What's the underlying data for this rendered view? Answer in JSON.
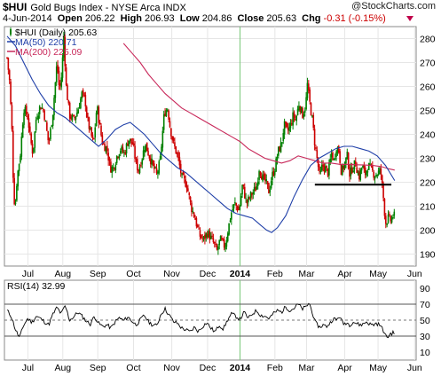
{
  "header": {
    "symbol": "$HUI",
    "name": "Gold Bugs Index - NYSE Arca INDX",
    "credit": "@StockCharts.com",
    "date": "4-Jun-2014",
    "open_label": "Open",
    "open": "206.22",
    "high_label": "High",
    "high": "206.93",
    "low_label": "Low",
    "low": "204.86",
    "close_label": "Close",
    "close": "205.63",
    "chg_label": "Chg",
    "chg": "-0.31 (-0.15%)"
  },
  "colors": {
    "up": "#008000",
    "down": "#cc0000",
    "ma50": "#1f3fa8",
    "ma200": "#c8285a",
    "rsi": "#000000",
    "vline": "#78c878"
  },
  "chart_data": [
    {
      "type": "candlestick",
      "legend": [
        {
          "name": "$HUI (Daily)",
          "value": "205.63",
          "swatch": "candle"
        },
        {
          "name": "MA(50)",
          "value": "220.71",
          "swatch": "ma50"
        },
        {
          "name": "MA(200)",
          "value": "225.09",
          "swatch": "ma200"
        }
      ],
      "ylim": [
        185,
        285
      ],
      "yticks": [
        190,
        200,
        210,
        220,
        230,
        240,
        250,
        260,
        270,
        280
      ],
      "x_labels": [
        "Jul",
        "Aug",
        "Sep",
        "Oct",
        "Nov",
        "Dec",
        "2014",
        "Feb",
        "Mar",
        "Apr",
        "May",
        "Jun"
      ],
      "x_label_days": [
        25,
        67,
        109,
        152,
        198,
        241,
        280,
        322,
        360,
        406,
        446,
        490
      ],
      "year_marker_day": 280,
      "price_keypoints": [
        [
          0,
          272
        ],
        [
          3,
          262
        ],
        [
          6,
          240
        ],
        [
          8,
          213
        ],
        [
          10,
          211
        ],
        [
          12,
          222
        ],
        [
          16,
          232
        ],
        [
          20,
          251
        ],
        [
          25,
          247
        ],
        [
          28,
          238
        ],
        [
          31,
          232
        ],
        [
          35,
          247
        ],
        [
          40,
          252
        ],
        [
          44,
          250
        ],
        [
          50,
          236
        ],
        [
          55,
          249
        ],
        [
          60,
          270
        ],
        [
          63,
          258
        ],
        [
          66,
          266
        ],
        [
          68,
          282
        ],
        [
          71,
          260
        ],
        [
          75,
          248
        ],
        [
          80,
          246
        ],
        [
          85,
          250
        ],
        [
          90,
          257
        ],
        [
          94,
          254
        ],
        [
          96,
          247
        ],
        [
          100,
          241
        ],
        [
          104,
          236
        ],
        [
          108,
          252
        ],
        [
          112,
          242
        ],
        [
          115,
          236
        ],
        [
          120,
          234
        ],
        [
          124,
          226
        ],
        [
          128,
          226
        ],
        [
          132,
          231
        ],
        [
          136,
          234
        ],
        [
          141,
          232
        ],
        [
          146,
          238
        ],
        [
          151,
          236
        ],
        [
          155,
          228
        ],
        [
          158,
          225
        ],
        [
          162,
          230
        ],
        [
          166,
          236
        ],
        [
          170,
          232
        ],
        [
          175,
          227
        ],
        [
          180,
          223
        ],
        [
          184,
          229
        ],
        [
          189,
          249
        ],
        [
          193,
          251
        ],
        [
          196,
          243
        ],
        [
          200,
          236
        ],
        [
          205,
          231
        ],
        [
          210,
          222
        ],
        [
          216,
          219
        ],
        [
          221,
          210
        ],
        [
          226,
          205
        ],
        [
          231,
          198
        ],
        [
          236,
          196
        ],
        [
          241,
          199
        ],
        [
          246,
          196
        ],
        [
          249,
          194
        ],
        [
          252,
          191
        ],
        [
          256,
          196
        ],
        [
          262,
          193
        ],
        [
          266,
          201
        ],
        [
          270,
          208
        ],
        [
          274,
          211
        ],
        [
          279,
          208
        ],
        [
          283,
          219
        ],
        [
          288,
          211
        ],
        [
          292,
          214
        ],
        [
          296,
          216
        ],
        [
          300,
          218
        ],
        [
          303,
          226
        ],
        [
          307,
          222
        ],
        [
          311,
          220
        ],
        [
          315,
          216
        ],
        [
          318,
          222
        ],
        [
          322,
          226
        ],
        [
          326,
          233
        ],
        [
          330,
          236
        ],
        [
          333,
          244
        ],
        [
          337,
          241
        ],
        [
          341,
          244
        ],
        [
          344,
          248
        ],
        [
          347,
          246
        ],
        [
          351,
          253
        ],
        [
          355,
          248
        ],
        [
          359,
          252
        ],
        [
          361,
          261
        ],
        [
          363,
          255
        ],
        [
          367,
          246
        ],
        [
          370,
          236
        ],
        [
          373,
          229
        ],
        [
          376,
          222
        ],
        [
          379,
          227
        ],
        [
          382,
          226
        ],
        [
          386,
          224
        ],
        [
          390,
          232
        ],
        [
          393,
          229
        ],
        [
          396,
          235
        ],
        [
          399,
          233
        ],
        [
          402,
          224
        ],
        [
          405,
          227
        ],
        [
          409,
          231
        ],
        [
          412,
          223
        ],
        [
          415,
          226
        ],
        [
          419,
          228
        ],
        [
          423,
          222
        ],
        [
          427,
          227
        ],
        [
          430,
          223
        ],
        [
          434,
          227
        ],
        [
          438,
          225
        ],
        [
          442,
          223
        ],
        [
          446,
          224
        ],
        [
          449,
          225
        ],
        [
          452,
          215
        ],
        [
          455,
          203
        ],
        [
          458,
          205
        ],
        [
          461,
          204
        ],
        [
          464,
          206
        ],
        [
          466,
          205.63
        ]
      ],
      "ma50_keypoints": [
        [
          0,
          281
        ],
        [
          10,
          277
        ],
        [
          20,
          270
        ],
        [
          30,
          263
        ],
        [
          40,
          257
        ],
        [
          50,
          252
        ],
        [
          60,
          249
        ],
        [
          70,
          247
        ],
        [
          80,
          244
        ],
        [
          90,
          241
        ],
        [
          100,
          238
        ],
        [
          110,
          235
        ],
        [
          120,
          238
        ],
        [
          130,
          242
        ],
        [
          140,
          244
        ],
        [
          148,
          245
        ],
        [
          155,
          243
        ],
        [
          165,
          240
        ],
        [
          175,
          236
        ],
        [
          185,
          232
        ],
        [
          195,
          229
        ],
        [
          205,
          226
        ],
        [
          215,
          224
        ],
        [
          225,
          221
        ],
        [
          235,
          218
        ],
        [
          245,
          215
        ],
        [
          255,
          212
        ],
        [
          265,
          209
        ],
        [
          275,
          207
        ],
        [
          285,
          206
        ],
        [
          295,
          205
        ],
        [
          305,
          202
        ],
        [
          312,
          200
        ],
        [
          318,
          199
        ],
        [
          325,
          201
        ],
        [
          335,
          206
        ],
        [
          345,
          214
        ],
        [
          355,
          221
        ],
        [
          365,
          227
        ],
        [
          375,
          230
        ],
        [
          385,
          232
        ],
        [
          395,
          234
        ],
        [
          405,
          235
        ],
        [
          415,
          235
        ],
        [
          425,
          234
        ],
        [
          435,
          233
        ],
        [
          445,
          231
        ],
        [
          455,
          227
        ],
        [
          466,
          220.71
        ]
      ],
      "ma200_keypoints": [
        [
          140,
          278
        ],
        [
          150,
          274
        ],
        [
          160,
          270
        ],
        [
          170,
          265
        ],
        [
          180,
          261
        ],
        [
          190,
          257
        ],
        [
          200,
          254
        ],
        [
          210,
          251
        ],
        [
          220,
          249
        ],
        [
          230,
          247
        ],
        [
          240,
          245
        ],
        [
          250,
          243
        ],
        [
          260,
          241
        ],
        [
          270,
          239
        ],
        [
          280,
          237
        ],
        [
          290,
          234
        ],
        [
          300,
          232
        ],
        [
          310,
          230
        ],
        [
          320,
          229
        ],
        [
          330,
          228
        ],
        [
          340,
          229
        ],
        [
          350,
          231
        ],
        [
          360,
          230
        ],
        [
          370,
          229
        ],
        [
          380,
          228
        ],
        [
          390,
          228
        ],
        [
          400,
          227.5
        ],
        [
          410,
          227.5
        ],
        [
          420,
          227.3
        ],
        [
          430,
          227.2
        ],
        [
          440,
          227
        ],
        [
          450,
          226.5
        ],
        [
          460,
          225.5
        ],
        [
          466,
          225.09
        ]
      ],
      "support_line": {
        "from_day": 370,
        "to_day": 462,
        "value": 219
      }
    },
    {
      "type": "line",
      "legend": [
        {
          "name": "RSI(14)",
          "value": "32.99"
        }
      ],
      "ylim": [
        0,
        100
      ],
      "yticks": [
        10,
        30,
        50,
        70,
        90
      ],
      "solid_levels": [
        30,
        70
      ],
      "dashed_levels": [
        50
      ],
      "x_labels": [
        "Jul",
        "Aug",
        "Sep",
        "Oct",
        "Nov",
        "Dec",
        "2014",
        "Feb",
        "Mar",
        "Apr",
        "May",
        "Jun"
      ],
      "rsi_keypoints": [
        [
          0,
          62
        ],
        [
          5,
          55
        ],
        [
          10,
          38
        ],
        [
          15,
          28
        ],
        [
          20,
          44
        ],
        [
          25,
          52
        ],
        [
          30,
          47
        ],
        [
          35,
          55
        ],
        [
          40,
          52
        ],
        [
          45,
          48
        ],
        [
          50,
          44
        ],
        [
          55,
          57
        ],
        [
          60,
          66
        ],
        [
          65,
          58
        ],
        [
          70,
          68
        ],
        [
          75,
          50
        ],
        [
          80,
          54
        ],
        [
          85,
          60
        ],
        [
          90,
          55
        ],
        [
          95,
          49
        ],
        [
          100,
          45
        ],
        [
          105,
          55
        ],
        [
          110,
          46
        ],
        [
          115,
          42
        ],
        [
          120,
          44
        ],
        [
          125,
          40
        ],
        [
          130,
          48
        ],
        [
          135,
          53
        ],
        [
          140,
          49
        ],
        [
          145,
          54
        ],
        [
          150,
          49
        ],
        [
          155,
          44
        ],
        [
          160,
          50
        ],
        [
          165,
          56
        ],
        [
          170,
          48
        ],
        [
          175,
          44
        ],
        [
          180,
          43
        ],
        [
          185,
          58
        ],
        [
          190,
          64
        ],
        [
          195,
          56
        ],
        [
          200,
          48
        ],
        [
          205,
          46
        ],
        [
          210,
          40
        ],
        [
          215,
          38
        ],
        [
          220,
          35
        ],
        [
          225,
          41
        ],
        [
          230,
          36
        ],
        [
          235,
          42
        ],
        [
          240,
          47
        ],
        [
          245,
          40
        ],
        [
          250,
          35
        ],
        [
          255,
          44
        ],
        [
          260,
          39
        ],
        [
          265,
          50
        ],
        [
          270,
          58
        ],
        [
          275,
          55
        ],
        [
          280,
          51
        ],
        [
          285,
          60
        ],
        [
          290,
          52
        ],
        [
          295,
          58
        ],
        [
          300,
          62
        ],
        [
          305,
          56
        ],
        [
          310,
          55
        ],
        [
          315,
          52
        ],
        [
          320,
          58
        ],
        [
          325,
          62
        ],
        [
          330,
          60
        ],
        [
          335,
          67
        ],
        [
          340,
          62
        ],
        [
          345,
          65
        ],
        [
          350,
          70
        ],
        [
          355,
          64
        ],
        [
          360,
          67
        ],
        [
          363,
          72
        ],
        [
          367,
          60
        ],
        [
          370,
          48
        ],
        [
          373,
          44
        ],
        [
          376,
          41
        ],
        [
          380,
          44
        ],
        [
          384,
          42
        ],
        [
          388,
          46
        ],
        [
          392,
          52
        ],
        [
          396,
          50
        ],
        [
          400,
          55
        ],
        [
          404,
          45
        ],
        [
          408,
          47
        ],
        [
          412,
          44
        ],
        [
          416,
          48
        ],
        [
          420,
          46
        ],
        [
          424,
          44
        ],
        [
          428,
          45
        ],
        [
          432,
          48
        ],
        [
          436,
          45
        ],
        [
          440,
          44
        ],
        [
          444,
          46
        ],
        [
          448,
          44
        ],
        [
          452,
          38
        ],
        [
          455,
          30
        ],
        [
          458,
          29
        ],
        [
          461,
          33
        ],
        [
          464,
          34
        ],
        [
          466,
          32.99
        ]
      ]
    }
  ]
}
